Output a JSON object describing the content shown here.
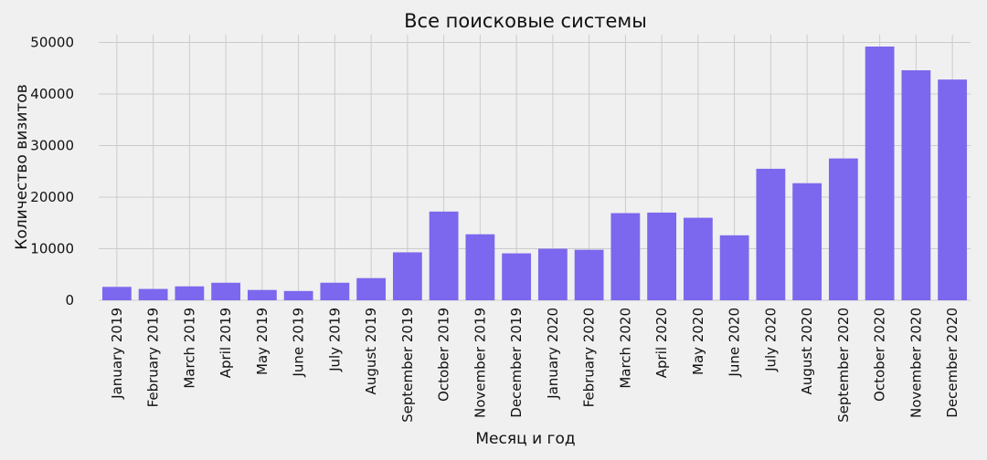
{
  "chart_data": {
    "type": "bar",
    "title": "Все поисковые системы",
    "xlabel": "Месяц и год",
    "ylabel": "Количество визитов",
    "categories": [
      "January 2019",
      "February 2019",
      "March 2019",
      "April 2019",
      "May 2019",
      "June 2019",
      "July 2019",
      "August 2019",
      "September 2019",
      "October 2019",
      "November 2019",
      "December 2019",
      "January 2020",
      "February 2020",
      "March 2020",
      "April 2020",
      "May 2020",
      "June 2020",
      "July 2020",
      "August 2020",
      "September 2020",
      "October 2020",
      "November 2020",
      "December 2020"
    ],
    "values": [
      2600,
      2200,
      2700,
      3400,
      2000,
      1800,
      3400,
      4300,
      9300,
      17200,
      12800,
      9100,
      10000,
      9800,
      16900,
      17000,
      16000,
      12600,
      25500,
      22700,
      27500,
      49200,
      44600,
      42800
    ],
    "ylim": [
      0,
      51500
    ],
    "yticks": [
      0,
      10000,
      20000,
      30000,
      40000,
      50000
    ],
    "bar_color": "#7b68ee",
    "background_color": "#f0f0f0",
    "grid_color": "#cbcbcb",
    "grid": true,
    "legend": "none"
  }
}
